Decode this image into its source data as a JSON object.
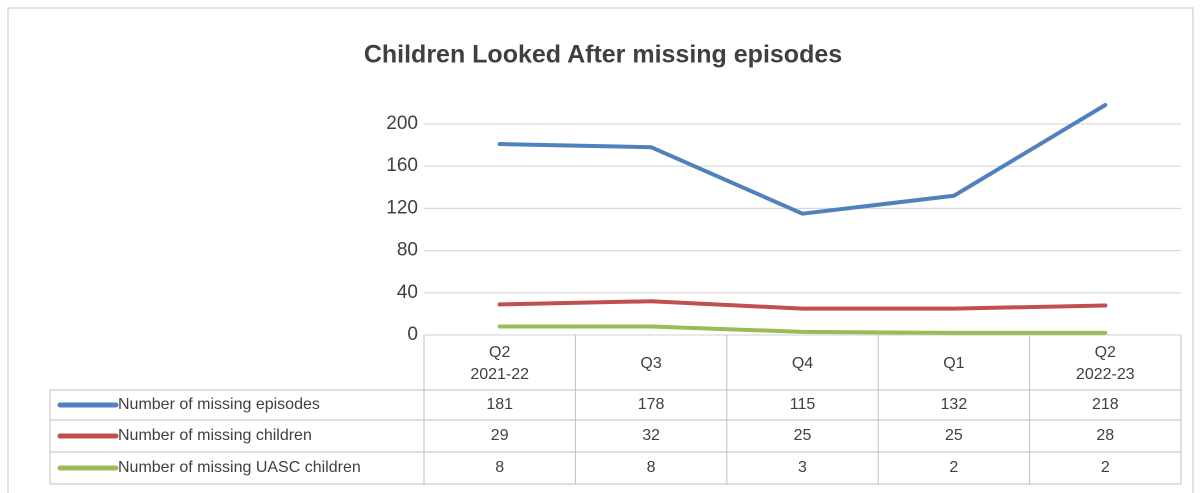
{
  "chart_data": {
    "type": "line",
    "title": "Children Looked After missing episodes",
    "categories": [
      "Q2\n2021-22",
      "Q3",
      "Q4",
      "Q1",
      "Q2\n2022-23"
    ],
    "series": [
      {
        "name": "Number of missing episodes",
        "color": "#4f81bd",
        "values": [
          181,
          178,
          115,
          132,
          218
        ]
      },
      {
        "name": "Number of  missing children",
        "color": "#c0504d",
        "values": [
          29,
          32,
          25,
          25,
          28
        ]
      },
      {
        "name": "Number of missing UASC children",
        "color": "#9bbb59",
        "values": [
          8,
          8,
          3,
          2,
          2
        ]
      }
    ],
    "ylim": [
      0,
      220
    ],
    "yticks": [
      0,
      40,
      80,
      120,
      160,
      200
    ],
    "grid": true,
    "data_table": true
  }
}
